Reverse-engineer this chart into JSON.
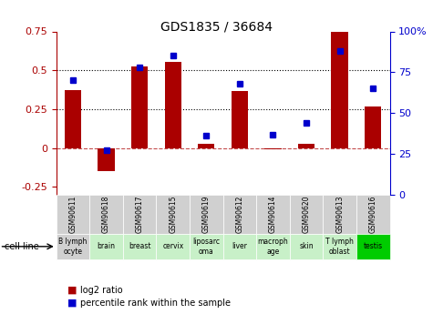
{
  "title": "GDS1835 / 36684",
  "samples": [
    "GSM90611",
    "GSM90618",
    "GSM90617",
    "GSM90615",
    "GSM90619",
    "GSM90612",
    "GSM90614",
    "GSM90620",
    "GSM90613",
    "GSM90616"
  ],
  "cell_lines": [
    "B lymph\nocyte",
    "brain",
    "breast",
    "cervix",
    "liposarc\noma",
    "liver",
    "macroph\nage",
    "skin",
    "T lymph\noblast",
    "testis"
  ],
  "cell_bg_colors": [
    "#d0d0d0",
    "#c8f0c8",
    "#c8f0c8",
    "#c8f0c8",
    "#c8f0c8",
    "#c8f0c8",
    "#c8f0c8",
    "#c8f0c8",
    "#c8f0c8",
    "#00cc00"
  ],
  "log2_ratio": [
    0.37,
    -0.15,
    0.525,
    0.555,
    0.03,
    0.365,
    -0.01,
    0.025,
    0.75,
    0.265
  ],
  "percentile_rank": [
    70,
    27,
    78,
    85,
    36,
    68,
    37,
    44,
    88,
    65
  ],
  "bar_color": "#aa0000",
  "dot_color": "#0000cc",
  "left_ylim": [
    -0.3,
    0.75
  ],
  "right_ylim": [
    0,
    100
  ],
  "left_yticks": [
    -0.25,
    0,
    0.25,
    0.5,
    0.75
  ],
  "left_yticklabels": [
    "-0.25",
    "0",
    "0.25",
    "0.5",
    "0.75"
  ],
  "right_yticks": [
    0,
    25,
    50,
    75,
    100
  ],
  "right_yticklabels": [
    "0",
    "25",
    "50",
    "75",
    "100%"
  ],
  "hlines": [
    0.25,
    0.5
  ],
  "legend_label1": "log2 ratio",
  "legend_label2": "percentile rank within the sample",
  "cell_line_label": "cell line",
  "sample_bg_color": "#d0d0d0",
  "bar_width": 0.5
}
